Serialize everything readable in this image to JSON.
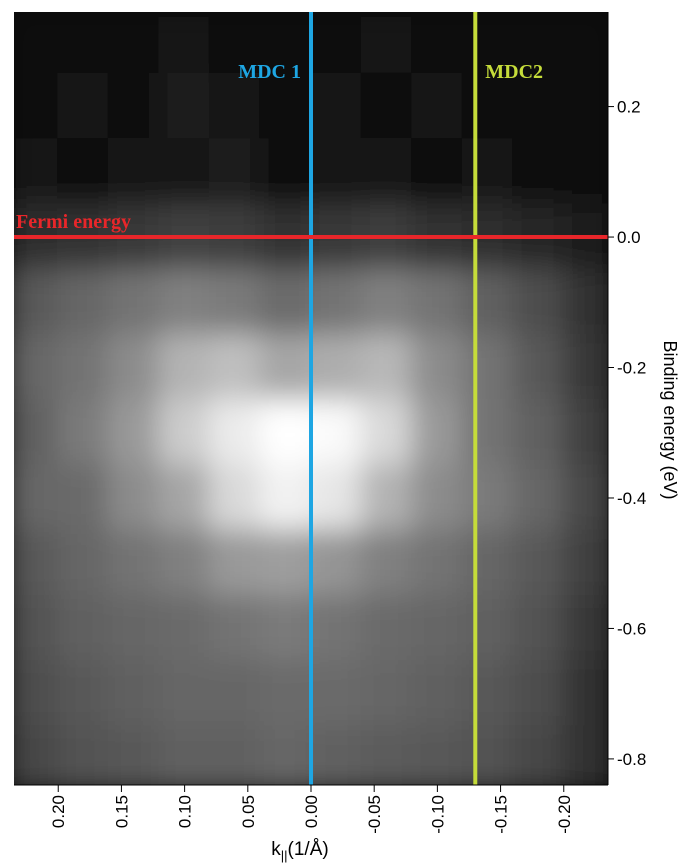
{
  "chart_data": {
    "type": "heatmap",
    "x": [
      0.22,
      0.18,
      0.14,
      0.1,
      0.06,
      0.02,
      -0.02,
      -0.06,
      -0.1,
      -0.14,
      -0.18,
      -0.22
    ],
    "y": [
      0.3,
      0.2,
      0.1,
      0.0,
      -0.1,
      -0.2,
      -0.3,
      -0.4,
      -0.5,
      -0.6,
      -0.7,
      -0.8
    ],
    "z": [
      [
        5,
        6,
        4,
        8,
        5,
        6,
        4,
        7,
        5,
        6,
        4,
        3
      ],
      [
        6,
        8,
        5,
        12,
        7,
        5,
        8,
        6,
        7,
        5,
        6,
        4
      ],
      [
        7,
        6,
        9,
        8,
        10,
        6,
        7,
        9,
        6,
        8,
        5,
        4
      ],
      [
        18,
        20,
        22,
        25,
        24,
        20,
        22,
        24,
        20,
        18,
        15,
        10
      ],
      [
        35,
        40,
        45,
        50,
        48,
        42,
        45,
        50,
        45,
        38,
        30,
        20
      ],
      [
        40,
        45,
        55,
        70,
        75,
        65,
        68,
        72,
        55,
        45,
        35,
        22
      ],
      [
        38,
        48,
        60,
        80,
        92,
        100,
        98,
        85,
        60,
        45,
        38,
        25
      ],
      [
        40,
        42,
        55,
        65,
        85,
        95,
        90,
        70,
        55,
        48,
        40,
        28
      ],
      [
        35,
        40,
        45,
        50,
        60,
        62,
        58,
        50,
        45,
        40,
        35,
        25
      ],
      [
        32,
        38,
        40,
        42,
        45,
        48,
        45,
        42,
        40,
        38,
        32,
        22
      ],
      [
        30,
        35,
        38,
        40,
        40,
        42,
        42,
        40,
        38,
        35,
        30,
        20
      ],
      [
        28,
        32,
        35,
        38,
        38,
        40,
        38,
        36,
        35,
        32,
        28,
        20
      ]
    ],
    "zlim": [
      0,
      100
    ],
    "xlim": [
      0.235,
      -0.235
    ],
    "ylim": [
      -0.84,
      0.345
    ],
    "xticks": [
      {
        "value": 0.2,
        "label": "0.20"
      },
      0.15,
      {
        "value": 0.1,
        "label": "0.10"
      },
      0.05,
      {
        "value": 0,
        "label": "0.00"
      },
      -0.05,
      {
        "value": -0.1,
        "label": "-0.10"
      },
      -0.15,
      {
        "value": -0.2,
        "label": "-0.20"
      }
    ],
    "yticks": [
      0.2,
      {
        "value": 0,
        "label": "0.0"
      },
      -0.2,
      -0.4,
      -0.6,
      -0.8
    ],
    "x_label": {
      "main": "k",
      "subscript": "||",
      "suffix": "(1/Å)"
    },
    "y_label": "Binding energy (eV)",
    "lines": [
      {
        "name": "MDC 1",
        "orientation": "vertical",
        "value": 0,
        "color": "#1ea6e3"
      },
      {
        "name": "MDC2",
        "orientation": "vertical",
        "value": -0.13,
        "color": "#c5dc3a"
      },
      {
        "name": "Fermi energy",
        "orientation": "horizontal",
        "value": 0,
        "color": "#e8262a"
      }
    ]
  }
}
